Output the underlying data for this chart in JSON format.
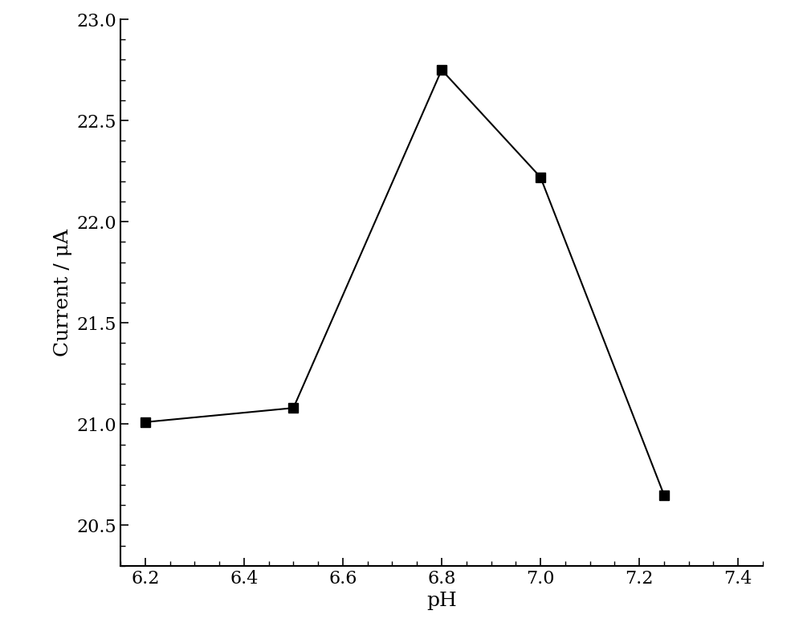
{
  "x": [
    6.2,
    6.5,
    6.8,
    7.0,
    7.25
  ],
  "y": [
    21.01,
    21.08,
    22.75,
    22.22,
    20.65
  ],
  "xlabel": "pH",
  "ylabel": "Current / μA",
  "xlim": [
    6.15,
    7.45
  ],
  "ylim": [
    20.3,
    23.0
  ],
  "xticks": [
    6.2,
    6.4,
    6.6,
    6.8,
    7.0,
    7.2,
    7.4
  ],
  "yticks": [
    20.5,
    21.0,
    21.5,
    22.0,
    22.5,
    23.0
  ],
  "line_color": "#000000",
  "marker": "s",
  "marker_color": "#000000",
  "marker_size": 8,
  "line_width": 1.5,
  "xlabel_fontsize": 18,
  "ylabel_fontsize": 18,
  "tick_fontsize": 16,
  "background_color": "#ffffff",
  "spine_color": "#000000"
}
